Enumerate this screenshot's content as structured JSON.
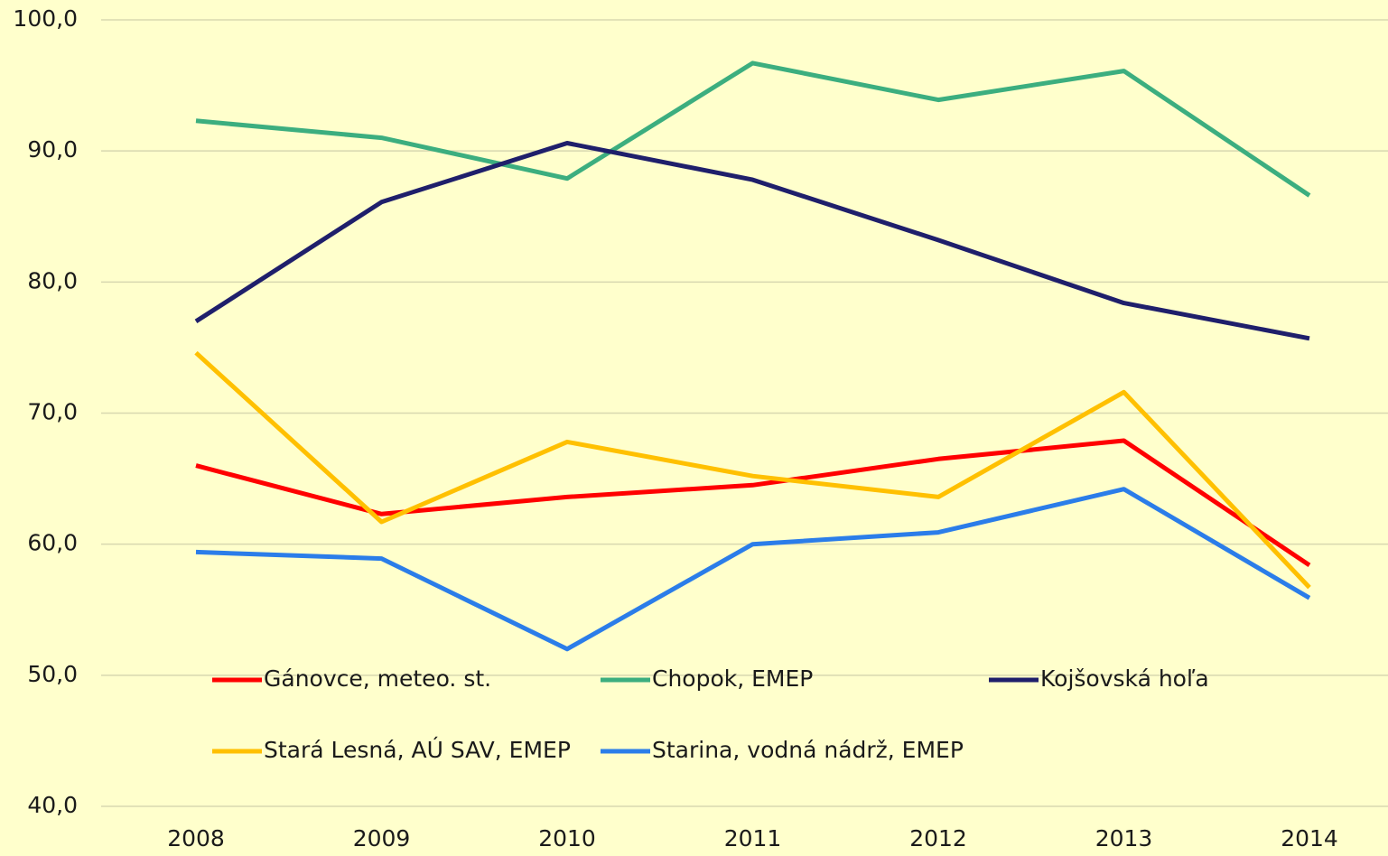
{
  "chart_data": {
    "type": "line",
    "categories": [
      "2008",
      "2009",
      "2010",
      "2011",
      "2012",
      "2013",
      "2014"
    ],
    "series": [
      {
        "name": "Gánovce, meteo. st.",
        "color": "#ff0000",
        "values": [
          66.0,
          62.3,
          63.6,
          64.5,
          66.5,
          67.9,
          58.4
        ]
      },
      {
        "name": "Chopok, EMEP",
        "color": "#3cae7f",
        "values": [
          92.3,
          91.0,
          87.9,
          96.7,
          93.9,
          96.1,
          86.6
        ]
      },
      {
        "name": "Kojšovská hoľa",
        "color": "#1f1f6b",
        "values": [
          77.0,
          86.1,
          90.6,
          87.8,
          83.2,
          78.4,
          75.7
        ]
      },
      {
        "name": "Stará Lesná, AÚ SAV, EMEP",
        "color": "#ffc000",
        "values": [
          74.6,
          61.7,
          67.8,
          65.2,
          63.6,
          71.6,
          56.7
        ]
      },
      {
        "name": "Starina, vodná nádrž, EMEP",
        "color": "#2b7de9",
        "values": [
          59.4,
          58.9,
          52.0,
          60.0,
          60.9,
          64.2,
          55.9
        ]
      }
    ],
    "ylim": [
      40,
      100
    ],
    "yticks": [
      {
        "value": 40,
        "label": "40,0"
      },
      {
        "value": 50,
        "label": "50,0"
      },
      {
        "value": 60,
        "label": "60,0"
      },
      {
        "value": 70,
        "label": "70,0"
      },
      {
        "value": 80,
        "label": "80,0"
      },
      {
        "value": 90,
        "label": "90,0"
      },
      {
        "value": 100,
        "label": "100,0"
      }
    ],
    "grid": true,
    "legend": "bottom"
  }
}
